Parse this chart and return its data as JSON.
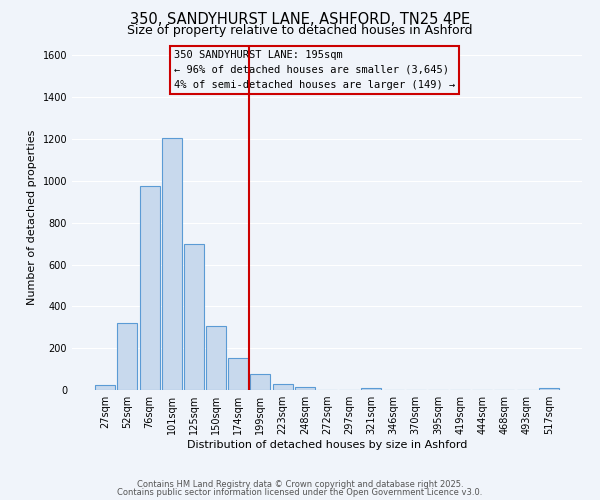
{
  "title": "350, SANDYHURST LANE, ASHFORD, TN25 4PE",
  "subtitle": "Size of property relative to detached houses in Ashford",
  "xlabel": "Distribution of detached houses by size in Ashford",
  "ylabel": "Number of detached properties",
  "bin_labels": [
    "27sqm",
    "52sqm",
    "76sqm",
    "101sqm",
    "125sqm",
    "150sqm",
    "174sqm",
    "199sqm",
    "223sqm",
    "248sqm",
    "272sqm",
    "297sqm",
    "321sqm",
    "346sqm",
    "370sqm",
    "395sqm",
    "419sqm",
    "444sqm",
    "468sqm",
    "493sqm",
    "517sqm"
  ],
  "bar_values": [
    25,
    320,
    975,
    1205,
    700,
    305,
    155,
    75,
    30,
    15,
    0,
    0,
    8,
    0,
    0,
    0,
    0,
    0,
    0,
    0,
    10
  ],
  "bar_color": "#c8d9ed",
  "bar_edge_color": "#5b9bd5",
  "vline_color": "#cc0000",
  "annotation_box_text": "350 SANDYHURST LANE: 195sqm\n← 96% of detached houses are smaller (3,645)\n4% of semi-detached houses are larger (149) →",
  "annotation_box_edge_color": "#cc0000",
  "ylim": [
    0,
    1650
  ],
  "yticks": [
    0,
    200,
    400,
    600,
    800,
    1000,
    1200,
    1400,
    1600
  ],
  "bg_color": "#f0f4fa",
  "grid_color": "#ffffff",
  "footer1": "Contains HM Land Registry data © Crown copyright and database right 2025.",
  "footer2": "Contains public sector information licensed under the Open Government Licence v3.0.",
  "title_fontsize": 10.5,
  "subtitle_fontsize": 9,
  "axis_label_fontsize": 8,
  "tick_fontsize": 7,
  "annotation_fontsize": 7.5
}
